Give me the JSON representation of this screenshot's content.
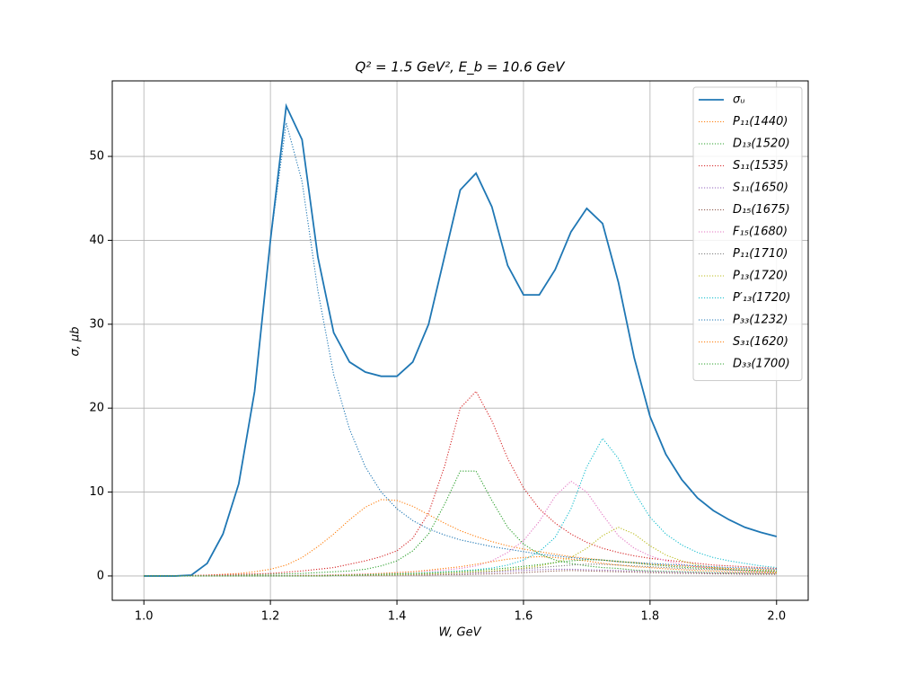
{
  "chart_data": {
    "type": "line",
    "title": "Q² = 1.5 GeV²,  E_b = 10.6 GeV",
    "x_label": "W, GeV",
    "y_label": "σ, μb",
    "xlim": [
      0.95,
      2.05
    ],
    "ylim": [
      -2.9,
      59
    ],
    "xticks": [
      {
        "value": 1,
        "label": "1.0"
      },
      {
        "value": 1.2,
        "label": "1.2"
      },
      {
        "value": 1.4,
        "label": "1.4"
      },
      {
        "value": 1.6,
        "label": "1.6"
      },
      {
        "value": 1.8,
        "label": "1.8"
      },
      {
        "value": 2,
        "label": "2.0"
      }
    ],
    "yticks": [
      0,
      10,
      20,
      30,
      40,
      50
    ],
    "grid": true,
    "legend": "upper right",
    "x": [
      1,
      1.025,
      1.05,
      1.075,
      1.1,
      1.125,
      1.15,
      1.175,
      1.2,
      1.225,
      1.25,
      1.275,
      1.3,
      1.325,
      1.35,
      1.375,
      1.4,
      1.425,
      1.45,
      1.475,
      1.5,
      1.525,
      1.55,
      1.575,
      1.6,
      1.625,
      1.65,
      1.675,
      1.7,
      1.725,
      1.75,
      1.775,
      1.8,
      1.825,
      1.85,
      1.875,
      1.9,
      1.925,
      1.95,
      1.975,
      2
    ],
    "series": [
      {
        "name": "σᵤ",
        "color": "#1f77b4",
        "linestyle": "solid",
        "values": [
          0,
          0,
          0,
          0.1,
          1.5,
          5,
          11,
          22,
          40,
          56,
          52,
          38,
          29,
          25.5,
          24.3,
          23.8,
          23.8,
          25.5,
          30,
          38,
          46,
          48,
          44,
          37,
          33.5,
          33.5,
          36.5,
          41,
          43.8,
          42,
          35,
          26,
          19,
          14.5,
          11.5,
          9.3,
          7.8,
          6.7,
          5.8,
          5.2,
          4.7
        ]
      },
      {
        "name": "P₁₁(1440)",
        "color": "#ff7f0e",
        "linestyle": "dotted",
        "values": [
          0,
          0,
          0,
          0.05,
          0.1,
          0.2,
          0.3,
          0.5,
          0.8,
          1.3,
          2.2,
          3.5,
          5,
          6.7,
          8.2,
          9.1,
          9,
          8.3,
          7.3,
          6.3,
          5.4,
          4.7,
          4.1,
          3.6,
          3.2,
          2.9,
          2.6,
          2.3,
          2.1,
          1.9,
          1.7,
          1.6,
          1.4,
          1.3,
          1.2,
          1.1,
          1.0,
          0.9,
          0.85,
          0.8,
          0.7
        ]
      },
      {
        "name": "D₁₃(1520)",
        "color": "#2ca02c",
        "linestyle": "dotted",
        "values": [
          0,
          0,
          0,
          0,
          0,
          0.05,
          0.1,
          0.15,
          0.2,
          0.25,
          0.3,
          0.4,
          0.5,
          0.6,
          0.8,
          1.2,
          1.8,
          3,
          5,
          8.5,
          12.5,
          12.5,
          9,
          5.8,
          3.8,
          2.6,
          1.9,
          1.5,
          1.2,
          1.0,
          0.9,
          0.7,
          0.6,
          0.55,
          0.5,
          0.45,
          0.4,
          0.35,
          0.35,
          0.3,
          0.3
        ]
      },
      {
        "name": "S₁₁(1535)",
        "color": "#d62728",
        "linestyle": "dotted",
        "values": [
          0,
          0,
          0,
          0.05,
          0.1,
          0.15,
          0.2,
          0.25,
          0.3,
          0.45,
          0.6,
          0.8,
          1,
          1.4,
          1.8,
          2.3,
          3,
          4.5,
          7.5,
          13,
          20,
          22,
          18.5,
          14,
          10.5,
          8,
          6.3,
          5,
          4,
          3.3,
          2.8,
          2.4,
          2.1,
          1.9,
          1.7,
          1.5,
          1.3,
          1.2,
          1.1,
          1.0,
          0.9
        ]
      },
      {
        "name": "S₁₁(1650)",
        "color": "#9467bd",
        "linestyle": "dotted",
        "values": [
          0,
          0,
          0,
          0,
          0,
          0,
          0,
          0,
          0,
          0.05,
          0.05,
          0.05,
          0.1,
          0.1,
          0.1,
          0.15,
          0.15,
          0.2,
          0.2,
          0.25,
          0.3,
          0.35,
          0.45,
          0.55,
          0.65,
          0.75,
          0.8,
          0.8,
          0.75,
          0.7,
          0.65,
          0.6,
          0.55,
          0.5,
          0.45,
          0.4,
          0.35,
          0.35,
          0.3,
          0.3,
          0.25
        ]
      },
      {
        "name": "D₁₅(1675)",
        "color": "#8c564b",
        "linestyle": "dotted",
        "values": [
          0,
          0,
          0,
          0,
          0,
          0,
          0,
          0,
          0,
          0,
          0,
          0,
          0.05,
          0.05,
          0.05,
          0.05,
          0.1,
          0.1,
          0.1,
          0.15,
          0.15,
          0.2,
          0.25,
          0.3,
          0.4,
          0.5,
          0.6,
          0.65,
          0.6,
          0.55,
          0.5,
          0.45,
          0.4,
          0.35,
          0.3,
          0.3,
          0.25,
          0.25,
          0.2,
          0.2,
          0.2
        ]
      },
      {
        "name": "F₁₅(1680)",
        "color": "#e377c2",
        "linestyle": "dotted",
        "values": [
          0,
          0,
          0,
          0,
          0,
          0,
          0,
          0,
          0.05,
          0.05,
          0.1,
          0.1,
          0.15,
          0.2,
          0.25,
          0.3,
          0.4,
          0.5,
          0.6,
          0.7,
          0.9,
          1.2,
          1.8,
          2.8,
          4.2,
          6.5,
          9.5,
          11.3,
          10,
          7.3,
          4.8,
          3.3,
          2.4,
          1.8,
          1.4,
          1.1,
          0.9,
          0.75,
          0.6,
          0.5,
          0.45
        ]
      },
      {
        "name": "P₁₁(1710)",
        "color": "#7f7f7f",
        "linestyle": "dotted",
        "values": [
          0,
          0,
          0,
          0,
          0,
          0,
          0,
          0,
          0,
          0,
          0,
          0,
          0.05,
          0.05,
          0.1,
          0.1,
          0.15,
          0.2,
          0.25,
          0.3,
          0.35,
          0.45,
          0.55,
          0.7,
          0.85,
          1.0,
          1.15,
          1.3,
          1.4,
          1.4,
          1.3,
          1.2,
          1.1,
          1.0,
          0.9,
          0.8,
          0.75,
          0.7,
          0.65,
          0.6,
          0.55
        ]
      },
      {
        "name": "P₁₃(1720)",
        "color": "#bcbd22",
        "linestyle": "dotted",
        "values": [
          0,
          0,
          0,
          0,
          0,
          0,
          0,
          0,
          0,
          0,
          0,
          0,
          0.05,
          0.05,
          0.1,
          0.1,
          0.15,
          0.2,
          0.25,
          0.3,
          0.4,
          0.5,
          0.6,
          0.75,
          0.95,
          1.2,
          1.6,
          2.2,
          3.3,
          4.8,
          5.8,
          5,
          3.6,
          2.5,
          1.8,
          1.3,
          1.0,
          0.8,
          0.65,
          0.55,
          0.45
        ]
      },
      {
        "name": "P′₁₃(1720)",
        "color": "#17becf",
        "linestyle": "dotted",
        "values": [
          0,
          0,
          0,
          0,
          0,
          0,
          0,
          0,
          0,
          0,
          0.05,
          0.05,
          0.1,
          0.1,
          0.15,
          0.2,
          0.25,
          0.3,
          0.4,
          0.5,
          0.6,
          0.75,
          0.95,
          1.3,
          1.9,
          2.9,
          4.6,
          8,
          13,
          16.4,
          14,
          10,
          7,
          5,
          3.7,
          2.8,
          2.2,
          1.8,
          1.5,
          1.2,
          1.0
        ]
      },
      {
        "name": "P₃₃(1232)",
        "color": "#1f77b4",
        "linestyle": "dotted",
        "values": [
          0,
          0,
          0,
          0.1,
          1.5,
          5,
          11,
          22,
          40,
          54,
          47,
          34,
          24,
          17.5,
          13,
          10,
          8,
          6.6,
          5.6,
          4.9,
          4.3,
          3.9,
          3.5,
          3.2,
          2.9,
          2.6,
          2.4,
          2.2,
          2.0,
          1.9,
          1.7,
          1.6,
          1.5,
          1.4,
          1.3,
          1.2,
          1.1,
          1.0,
          0.95,
          0.9,
          0.8
        ]
      },
      {
        "name": "S₃₁(1620)",
        "color": "#ff7f0e",
        "linestyle": "dotted",
        "values": [
          0,
          0,
          0,
          0,
          0,
          0,
          0,
          0,
          0,
          0,
          0.05,
          0.05,
          0.1,
          0.15,
          0.2,
          0.3,
          0.4,
          0.5,
          0.7,
          0.9,
          1.1,
          1.4,
          1.7,
          2.0,
          2.2,
          2.3,
          2.2,
          2.0,
          1.8,
          1.5,
          1.3,
          1.1,
          1.0,
          0.85,
          0.75,
          0.65,
          0.6,
          0.5,
          0.45,
          0.4,
          0.35
        ]
      },
      {
        "name": "D₃₃(1700)",
        "color": "#2ca02c",
        "linestyle": "dotted",
        "values": [
          0,
          0,
          0,
          0,
          0,
          0,
          0,
          0,
          0,
          0,
          0,
          0,
          0.05,
          0.1,
          0.15,
          0.2,
          0.25,
          0.3,
          0.35,
          0.45,
          0.55,
          0.65,
          0.8,
          0.95,
          1.15,
          1.35,
          1.6,
          1.8,
          1.95,
          1.9,
          1.75,
          1.55,
          1.35,
          1.2,
          1.05,
          0.95,
          0.85,
          0.75,
          0.7,
          0.65,
          0.6
        ]
      }
    ]
  }
}
